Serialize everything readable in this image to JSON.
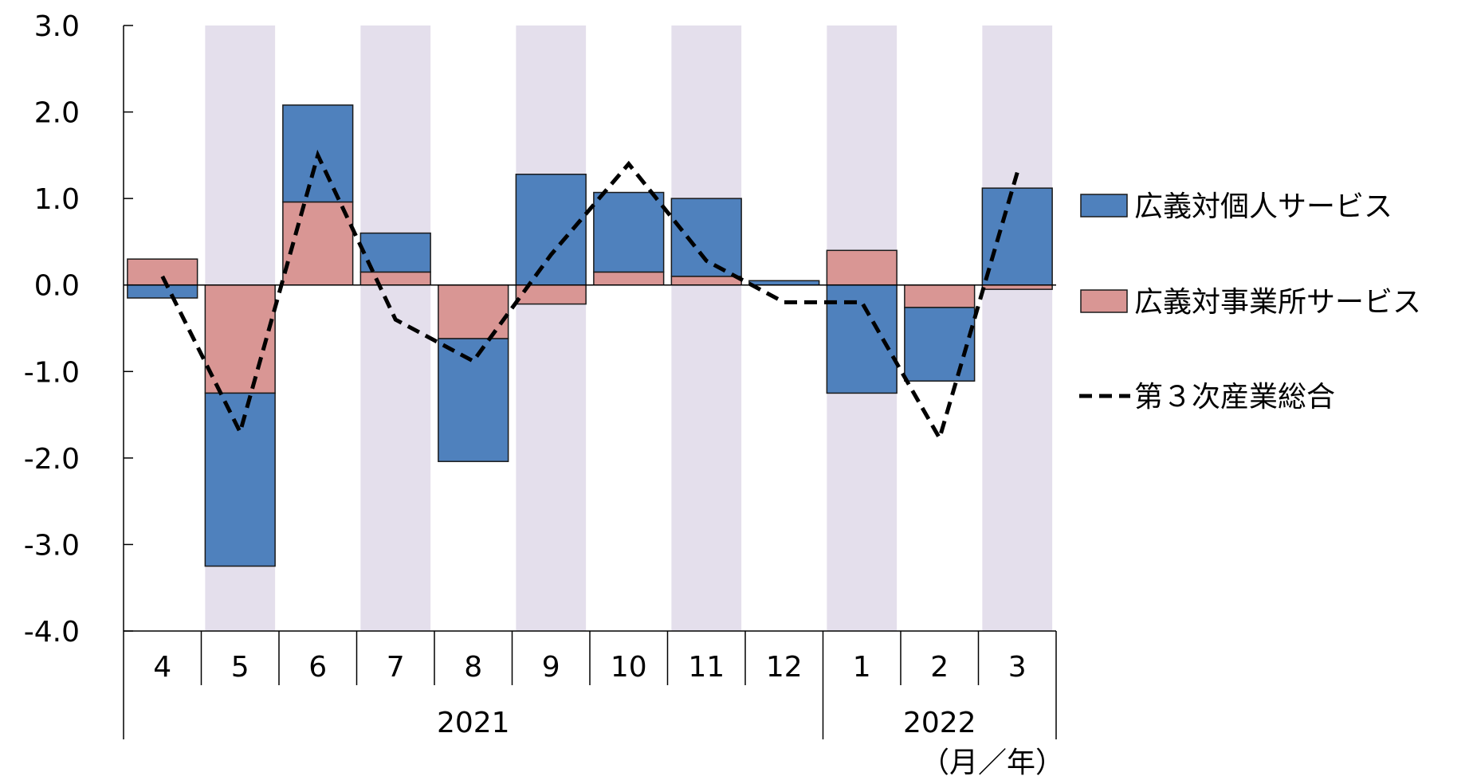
{
  "chart_data": {
    "type": "bar",
    "categories": [
      "4",
      "5",
      "6",
      "7",
      "8",
      "9",
      "10",
      "11",
      "12",
      "1",
      "2",
      "3"
    ],
    "year_groups": [
      {
        "label": "2021",
        "start": 0,
        "end": 8
      },
      {
        "label": "2022",
        "start": 9,
        "end": 11
      }
    ],
    "unit_label": "（月／年）",
    "shaded_categories": [
      1,
      3,
      5,
      7,
      9,
      11
    ],
    "y_ticks": [
      "3.0",
      "2.0",
      "1.0",
      "0.0",
      "-1.0",
      "-2.0",
      "-3.0",
      "-4.0"
    ],
    "ylim": [
      -4,
      3
    ],
    "stacked": true,
    "series": [
      {
        "name": "広義対個人サービス",
        "type": "bar",
        "color": "#4f81bd",
        "values": [
          -0.15,
          -2.0,
          1.12,
          0.45,
          -1.42,
          1.28,
          0.92,
          0.9,
          0.05,
          -1.25,
          -0.85,
          1.12
        ]
      },
      {
        "name": "広義対事業所サービス",
        "type": "bar",
        "color": "#d99694",
        "values": [
          0.3,
          -1.25,
          0.96,
          0.15,
          -0.62,
          -0.22,
          0.15,
          0.1,
          0.0,
          0.4,
          -0.26,
          -0.05
        ]
      },
      {
        "name": "第３次産業総合",
        "type": "line",
        "style": "dashed",
        "color": "#000000",
        "values": [
          0.1,
          -1.7,
          1.5,
          -0.4,
          -0.88,
          0.35,
          1.4,
          0.28,
          -0.2,
          -0.2,
          -1.77,
          1.3
        ]
      }
    ],
    "legend_position": "right",
    "shade_color": "#e4dfec"
  }
}
